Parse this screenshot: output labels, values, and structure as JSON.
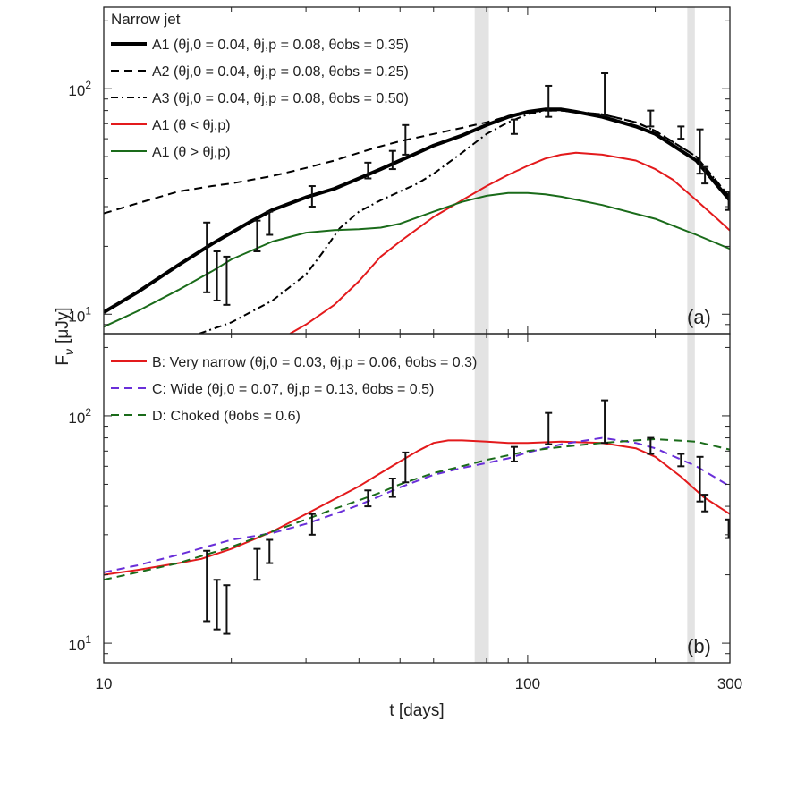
{
  "axes": {
    "xlabel": "t [days]",
    "ylabel_main": "F",
    "ylabel_sub": "ν",
    "ylabel_unit": "[μJy]",
    "xlim": [
      10,
      300
    ],
    "ylim": [
      8.2,
      230
    ],
    "xticks": [
      {
        "v": 10,
        "label": "10"
      },
      {
        "v": 100,
        "label": "100"
      },
      {
        "v": 300,
        "label": "300"
      }
    ],
    "yticks": [
      {
        "v": 10,
        "label": "10",
        "sup": "1"
      },
      {
        "v": 100,
        "label": "10",
        "sup": "2"
      }
    ],
    "shaded_bands": [
      [
        75,
        81
      ],
      [
        238,
        248
      ]
    ]
  },
  "chart_data": [
    {
      "type": "line",
      "panel_label": "(a)",
      "legend_title": "Narrow jet",
      "xscale": "log",
      "yscale": "log",
      "series": [
        {
          "name": "A1",
          "legend": "A1 (θj,0 = 0.04, θj,p = 0.08, θobs = 0.35)",
          "color": "#000000",
          "style": "solid",
          "width": 4,
          "x": [
            10,
            12,
            15,
            18,
            20,
            22,
            25,
            30,
            35,
            40,
            45,
            50,
            55,
            60,
            70,
            80,
            90,
            100,
            110,
            120,
            130,
            150,
            180,
            200,
            250,
            300
          ],
          "y": [
            10.2,
            12.5,
            16.5,
            20.5,
            23,
            25.5,
            29,
            33,
            36,
            40,
            44,
            48,
            52,
            56,
            62,
            69,
            75,
            79,
            81,
            81,
            79,
            75,
            68,
            63,
            48,
            32
          ]
        },
        {
          "name": "A2",
          "legend": "A2 (θj,0 = 0.04, θj,p = 0.08, θobs = 0.25)",
          "color": "#000000",
          "style": "dash",
          "width": 2,
          "x": [
            10,
            12,
            15,
            18,
            20,
            25,
            30,
            35,
            40,
            45,
            50,
            60,
            70,
            80,
            90,
            100,
            110,
            120,
            150,
            180,
            200,
            250,
            300
          ],
          "y": [
            28,
            31,
            35,
            37,
            38,
            41,
            44.5,
            48,
            52,
            55.5,
            58.5,
            63,
            67,
            71,
            75.5,
            79,
            80,
            80,
            77,
            71,
            65,
            50,
            33
          ]
        },
        {
          "name": "A3",
          "legend": "A3 (θj,0 = 0.04, θj,p = 0.08, θobs = 0.50)",
          "color": "#000000",
          "style": "dashdot",
          "width": 2,
          "x": [
            16.8,
            20,
            25,
            30,
            33,
            36,
            40,
            45,
            50,
            55,
            60,
            70,
            80,
            90,
            100,
            110,
            120,
            150,
            180,
            200,
            250,
            300
          ],
          "y": [
            8.2,
            9.2,
            11.5,
            15,
            19,
            24,
            28.5,
            32,
            35,
            38,
            42,
            52,
            63,
            71,
            77,
            80,
            80,
            77,
            71,
            65,
            50,
            33
          ]
        },
        {
          "name": "A1 (θ < θj,p)",
          "legend": "A1 (θ < θj,p)",
          "color": "#e31a1c",
          "style": "solid",
          "width": 2,
          "x": [
            27.5,
            30,
            35,
            40,
            45,
            50,
            60,
            70,
            80,
            90,
            100,
            110,
            120,
            130,
            150,
            180,
            200,
            220,
            250,
            280,
            300
          ],
          "y": [
            8.2,
            9,
            11,
            14,
            18,
            21,
            27,
            32,
            37,
            41.5,
            45.5,
            49,
            51,
            52,
            51,
            48,
            44,
            39.5,
            32,
            26.5,
            23.5
          ]
        },
        {
          "name": "A1 (θ > θj,p)",
          "legend": "A1 (θ > θj,p)",
          "color": "#1a6b1a",
          "style": "solid",
          "width": 2,
          "x": [
            10,
            12,
            15,
            18,
            20,
            25,
            30,
            35,
            40,
            45,
            50,
            60,
            70,
            80,
            90,
            100,
            110,
            120,
            150,
            200,
            250,
            300
          ],
          "y": [
            8.8,
            10.3,
            12.8,
            15.5,
            17.5,
            21,
            23,
            23.6,
            23.8,
            24.2,
            25.2,
            28.5,
            31.5,
            33.5,
            34.5,
            34.5,
            34,
            33.2,
            30.5,
            26.5,
            22.5,
            19.5
          ]
        }
      ],
      "errorbars": [
        {
          "x": 17.5,
          "y": 18.5,
          "lo": 12.5,
          "hi": 25.5
        },
        {
          "x": 18.5,
          "y": 16,
          "lo": 11.5,
          "hi": 19
        },
        {
          "x": 19.5,
          "y": 15,
          "lo": 11,
          "hi": 18
        },
        {
          "x": 23,
          "y": 22.5,
          "lo": 19,
          "hi": 26
        },
        {
          "x": 24.6,
          "y": 25.5,
          "lo": 22.5,
          "hi": 28.5
        },
        {
          "x": 31,
          "y": 33,
          "lo": 30,
          "hi": 37
        },
        {
          "x": 42,
          "y": 43,
          "lo": 40,
          "hi": 47
        },
        {
          "x": 48,
          "y": 48,
          "lo": 44,
          "hi": 53
        },
        {
          "x": 51.5,
          "y": 60,
          "lo": 51,
          "hi": 69
        },
        {
          "x": 93,
          "y": 68,
          "lo": 63,
          "hi": 73
        },
        {
          "x": 112,
          "y": 82,
          "lo": 75,
          "hi": 103
        },
        {
          "x": 152,
          "y": 80,
          "lo": 76,
          "hi": 117
        },
        {
          "x": 195,
          "y": 73,
          "lo": 68,
          "hi": 80
        },
        {
          "x": 230,
          "y": 64,
          "lo": 60,
          "hi": 68
        },
        {
          "x": 255,
          "y": 50,
          "lo": 42,
          "hi": 66
        },
        {
          "x": 262,
          "y": 42,
          "lo": 38,
          "hi": 45
        },
        {
          "x": 298,
          "y": 33,
          "lo": 29,
          "hi": 35
        }
      ]
    },
    {
      "type": "line",
      "panel_label": "(b)",
      "xscale": "log",
      "yscale": "log",
      "series": [
        {
          "name": "B",
          "legend": "B: Very narrow (θj,0 = 0.03, θj,p = 0.06, θobs = 0.3)",
          "color": "#e31a1c",
          "style": "solid",
          "width": 2,
          "x": [
            10,
            12,
            15,
            17,
            20,
            25,
            30,
            35,
            40,
            45,
            50,
            55,
            60,
            65,
            70,
            80,
            90,
            100,
            120,
            150,
            180,
            200,
            230,
            260,
            300
          ],
          "y": [
            20,
            21,
            22.5,
            23.5,
            26,
            31,
            37,
            43,
            49,
            56,
            63,
            70,
            76,
            78,
            78,
            77,
            76,
            76,
            77,
            76,
            72,
            66,
            54,
            44,
            37
          ]
        },
        {
          "name": "C",
          "legend": "C: Wide (θj,0 = 0.07, θj,p = 0.13, θobs = 0.5)",
          "color": "#6a2fd9",
          "style": "dash",
          "width": 2,
          "x": [
            10,
            12,
            15,
            18,
            20,
            25,
            30,
            35,
            40,
            45,
            50,
            60,
            70,
            80,
            90,
            100,
            120,
            150,
            180,
            200,
            250,
            300
          ],
          "y": [
            20.5,
            22,
            24.5,
            27,
            28.5,
            30.5,
            33.5,
            37,
            40.5,
            44.5,
            48.5,
            55,
            59,
            62,
            65,
            69,
            75,
            80,
            76,
            72,
            60,
            49
          ]
        },
        {
          "name": "D",
          "legend": "D: Choked (θobs = 0.6)",
          "color": "#1a6b1a",
          "style": "dash",
          "width": 2,
          "x": [
            10,
            12,
            15,
            18,
            20,
            25,
            30,
            35,
            40,
            45,
            50,
            60,
            70,
            80,
            90,
            100,
            120,
            150,
            180,
            200,
            250,
            300
          ],
          "y": [
            19,
            20.5,
            22.5,
            25,
            26.5,
            31,
            35,
            39,
            42.5,
            46,
            50,
            56,
            60,
            64,
            67,
            70,
            73,
            76,
            78,
            79,
            77,
            71
          ]
        }
      ],
      "errorbars": [
        {
          "x": 17.5,
          "y": 18.5,
          "lo": 12.5,
          "hi": 25.5
        },
        {
          "x": 18.5,
          "y": 16,
          "lo": 11.5,
          "hi": 19
        },
        {
          "x": 19.5,
          "y": 15,
          "lo": 11,
          "hi": 18
        },
        {
          "x": 23,
          "y": 22.5,
          "lo": 19,
          "hi": 26
        },
        {
          "x": 24.6,
          "y": 25.5,
          "lo": 22.5,
          "hi": 28.5
        },
        {
          "x": 31,
          "y": 33,
          "lo": 30,
          "hi": 37
        },
        {
          "x": 42,
          "y": 43,
          "lo": 40,
          "hi": 47
        },
        {
          "x": 48,
          "y": 48,
          "lo": 44,
          "hi": 53
        },
        {
          "x": 51.5,
          "y": 60,
          "lo": 51,
          "hi": 69
        },
        {
          "x": 93,
          "y": 68,
          "lo": 63,
          "hi": 73
        },
        {
          "x": 112,
          "y": 82,
          "lo": 75,
          "hi": 103
        },
        {
          "x": 152,
          "y": 80,
          "lo": 76,
          "hi": 117
        },
        {
          "x": 195,
          "y": 73,
          "lo": 68,
          "hi": 80
        },
        {
          "x": 230,
          "y": 64,
          "lo": 60,
          "hi": 68
        },
        {
          "x": 255,
          "y": 50,
          "lo": 42,
          "hi": 66
        },
        {
          "x": 262,
          "y": 42,
          "lo": 38,
          "hi": 45
        },
        {
          "x": 298,
          "y": 33,
          "lo": 29,
          "hi": 35
        }
      ]
    }
  ]
}
